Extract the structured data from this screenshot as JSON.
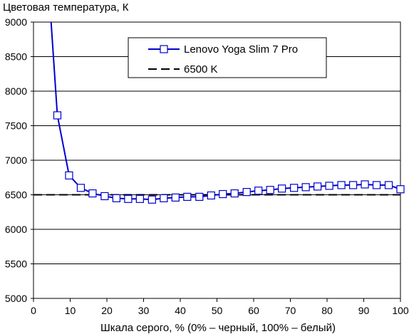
{
  "chart_data": {
    "type": "line",
    "title": "",
    "ylabel": "Цветовая температура, К",
    "xlabel": "Шкала серого, % (0% – черный, 100% – белый)",
    "xlim": [
      0,
      100
    ],
    "ylim": [
      5000,
      9000
    ],
    "x_ticks": [
      0,
      10,
      20,
      30,
      40,
      50,
      60,
      70,
      80,
      90,
      100
    ],
    "y_ticks": [
      5000,
      5500,
      6000,
      6500,
      7000,
      7500,
      8000,
      8500,
      9000
    ],
    "grid": "horizontal",
    "legend_position": "top-center",
    "series": [
      {
        "name": "Lenovo Yoga Slim 7 Pro",
        "color": "#0000cc",
        "marker": "square",
        "x": [
          6.5,
          9.7,
          12.9,
          16.1,
          19.4,
          22.6,
          25.8,
          29.0,
          32.3,
          35.5,
          38.7,
          41.9,
          45.2,
          48.4,
          51.6,
          54.8,
          58.1,
          61.3,
          64.5,
          67.7,
          71.0,
          74.2,
          77.4,
          80.6,
          83.9,
          87.1,
          90.3,
          93.5,
          96.8,
          100.0
        ],
        "y": [
          7650,
          6780,
          6600,
          6520,
          6480,
          6450,
          6440,
          6440,
          6430,
          6450,
          6460,
          6470,
          6470,
          6490,
          6510,
          6520,
          6540,
          6560,
          6570,
          6590,
          6600,
          6610,
          6620,
          6630,
          6640,
          6640,
          6650,
          6640,
          6640,
          6580
        ],
        "line_only": [
          {
            "x": 4.8,
            "y": 9000
          }
        ]
      },
      {
        "name": "6500 K",
        "color": "#000000",
        "style": "dashed",
        "x": [
          0,
          100
        ],
        "y": [
          6500,
          6500
        ]
      }
    ]
  }
}
